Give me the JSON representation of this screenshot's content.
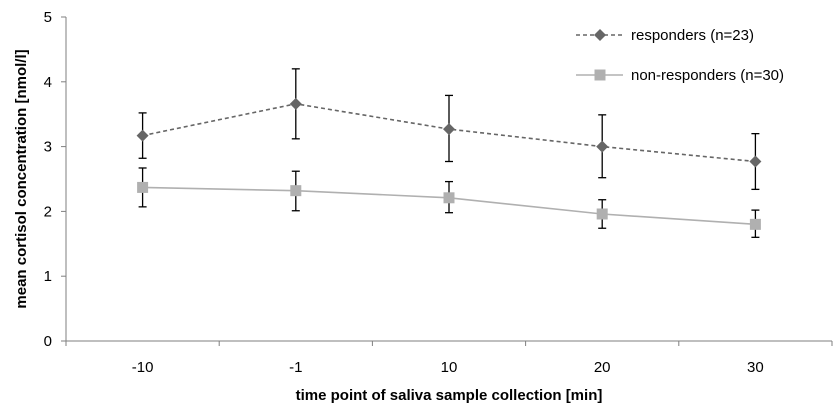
{
  "chart_data": {
    "type": "line",
    "categories": [
      "-10",
      "-1",
      "10",
      "20",
      "30"
    ],
    "xlabel": "time point of saliva sample collection [min]",
    "ylabel": "mean cortisol concentration [nmol/l]",
    "ylim": [
      0,
      5
    ],
    "yticks": [
      "0",
      "1",
      "2",
      "3",
      "4",
      "5"
    ],
    "grid": false,
    "legend_position": "top-right",
    "series": [
      {
        "name": "responders (n=23)",
        "color": "#666666",
        "line_style": "dashed",
        "marker": "diamond",
        "values": [
          3.17,
          3.66,
          3.27,
          3.0,
          2.77
        ],
        "error_low": [
          2.82,
          3.12,
          2.77,
          2.52,
          2.34
        ],
        "error_high": [
          3.52,
          4.2,
          3.79,
          3.49,
          3.2
        ]
      },
      {
        "name": "non-responders (n=30)",
        "color": "#b0b0b0",
        "line_style": "solid",
        "marker": "square",
        "values": [
          2.37,
          2.32,
          2.21,
          1.96,
          1.8
        ],
        "error_low": [
          2.07,
          2.01,
          1.98,
          1.74,
          1.6
        ],
        "error_high": [
          2.67,
          2.62,
          2.46,
          2.18,
          2.02
        ]
      }
    ]
  }
}
